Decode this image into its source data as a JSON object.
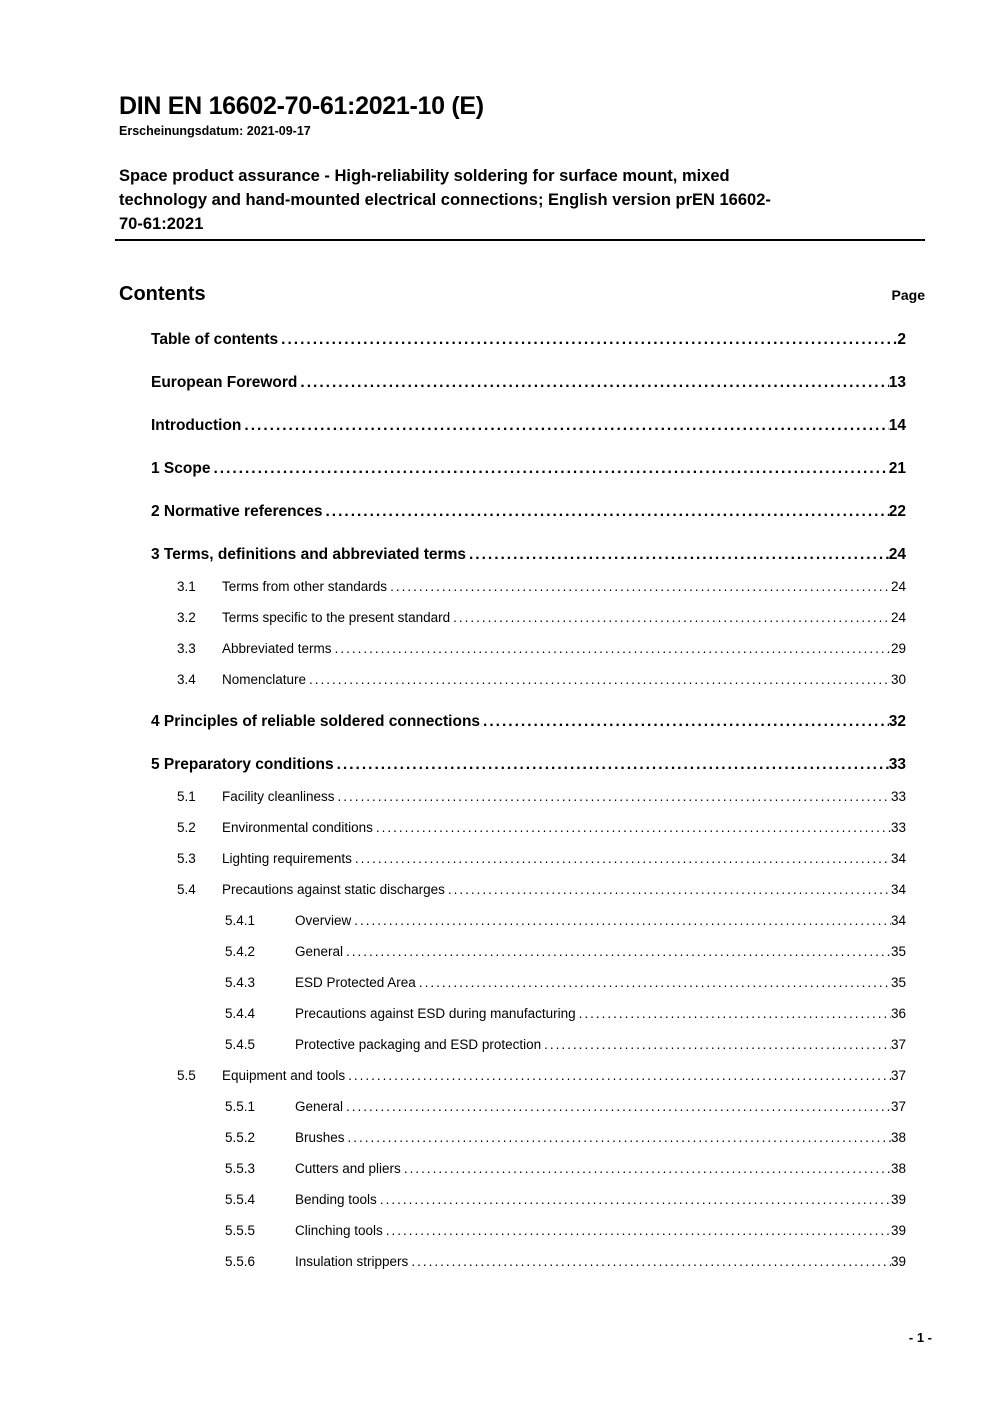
{
  "document": {
    "title": "DIN EN 16602-70-61:2021-10 (E)",
    "publication_date": "Erscheinungsdatum: 2021-09-17",
    "subtitle_lines": [
      "Space product assurance - High-reliability soldering for surface mount, mixed",
      "technology and hand-mounted electrical connections; English version prEN 16602-",
      "70-61:2021"
    ],
    "footer_page_number": "- 1 -"
  },
  "toc": {
    "heading": "Contents",
    "page_column_label": "Page",
    "entries": [
      {
        "level": 1,
        "num": "",
        "label": "Table of contents",
        "page": "2"
      },
      {
        "level": 1,
        "num": "",
        "label": "European Foreword",
        "page": "13"
      },
      {
        "level": 1,
        "num": "",
        "label": "Introduction",
        "page": "14"
      },
      {
        "level": 1,
        "num": "1",
        "label": "Scope",
        "page": "21"
      },
      {
        "level": 1,
        "num": "2",
        "label": "Normative references",
        "page": "22"
      },
      {
        "level": 1,
        "num": "3",
        "label": "Terms, definitions and abbreviated terms",
        "page": "24"
      },
      {
        "level": 2,
        "num": "3.1",
        "label": "Terms from other standards",
        "page": "24"
      },
      {
        "level": 2,
        "num": "3.2",
        "label": "Terms specific to the present standard",
        "page": "24"
      },
      {
        "level": 2,
        "num": "3.3",
        "label": "Abbreviated terms",
        "page": "29"
      },
      {
        "level": 2,
        "num": "3.4",
        "label": "Nomenclature",
        "page": "30"
      },
      {
        "level": 1,
        "num": "4",
        "label": "Principles of reliable soldered connections",
        "page": "32"
      },
      {
        "level": 1,
        "num": "5",
        "label": "Preparatory conditions",
        "page": "33"
      },
      {
        "level": 2,
        "num": "5.1",
        "label": "Facility cleanliness",
        "page": "33"
      },
      {
        "level": 2,
        "num": "5.2",
        "label": "Environmental conditions",
        "page": "33"
      },
      {
        "level": 2,
        "num": "5.3",
        "label": "Lighting requirements",
        "page": "34"
      },
      {
        "level": 2,
        "num": "5.4",
        "label": "Precautions against static discharges",
        "page": "34"
      },
      {
        "level": 3,
        "num": "5.4.1",
        "label": "Overview",
        "page": "34"
      },
      {
        "level": 3,
        "num": "5.4.2",
        "label": "General",
        "page": "35"
      },
      {
        "level": 3,
        "num": "5.4.3",
        "label": "ESD Protected Area",
        "page": "35"
      },
      {
        "level": 3,
        "num": "5.4.4",
        "label": "Precautions against ESD during manufacturing",
        "page": "36"
      },
      {
        "level": 3,
        "num": "5.4.5",
        "label": "Protective packaging and ESD protection",
        "page": "37"
      },
      {
        "level": 2,
        "num": "5.5",
        "label": "Equipment and tools",
        "page": "37"
      },
      {
        "level": 3,
        "num": "5.5.1",
        "label": "General",
        "page": "37"
      },
      {
        "level": 3,
        "num": "5.5.2",
        "label": "Brushes",
        "page": "38"
      },
      {
        "level": 3,
        "num": "5.5.3",
        "label": "Cutters and pliers",
        "page": "38"
      },
      {
        "level": 3,
        "num": "5.5.4",
        "label": "Bending tools",
        "page": "39"
      },
      {
        "level": 3,
        "num": "5.5.5",
        "label": "Clinching tools",
        "page": "39"
      },
      {
        "level": 3,
        "num": "5.5.6",
        "label": "Insulation strippers",
        "page": "39"
      }
    ]
  }
}
